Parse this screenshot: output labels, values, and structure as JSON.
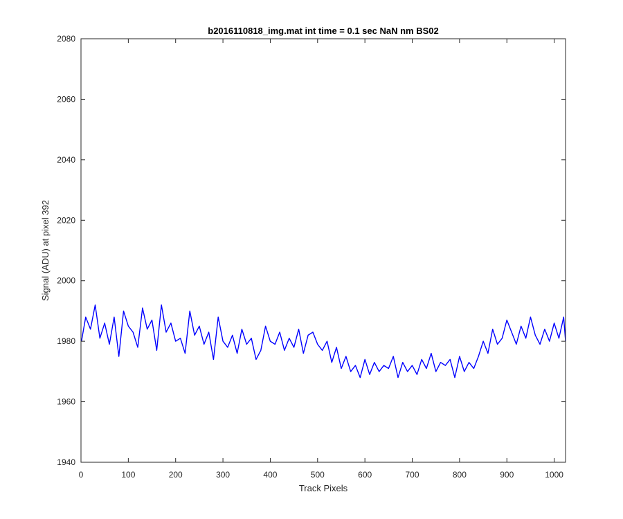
{
  "chart_data": {
    "type": "line",
    "title": "b2016110818_img.mat int time = 0.1 sec  NaN nm BS02",
    "xlabel": "Track Pixels",
    "ylabel": "Signal (ADU) at pixel 392",
    "xlim": [
      0,
      1024
    ],
    "ylim": [
      1940,
      2080
    ],
    "xticks": [
      0,
      100,
      200,
      300,
      400,
      500,
      600,
      700,
      800,
      900,
      1000
    ],
    "yticks": [
      1940,
      1960,
      1980,
      2000,
      2020,
      2040,
      2060,
      2080
    ],
    "grid": false,
    "line_color": "#0000ff",
    "series": [
      {
        "x": [
          1,
          10,
          20,
          30,
          40,
          50,
          60,
          70,
          80,
          90,
          100,
          110,
          120,
          130,
          140,
          150,
          160,
          170,
          180,
          190,
          200,
          210,
          220,
          230,
          240,
          250,
          260,
          270,
          280,
          290,
          300,
          310,
          320,
          330,
          340,
          350,
          360,
          370,
          380,
          390,
          400,
          410,
          420,
          430,
          440,
          450,
          460,
          470,
          480,
          490,
          500,
          510,
          520,
          530,
          540,
          550,
          560,
          570,
          580,
          590,
          600,
          610,
          620,
          630,
          640,
          650,
          660,
          670,
          680,
          690,
          700,
          710,
          720,
          730,
          740,
          750,
          760,
          770,
          780,
          790,
          800,
          810,
          820,
          830,
          840,
          850,
          860,
          870,
          880,
          890,
          900,
          910,
          920,
          930,
          940,
          950,
          960,
          970,
          980,
          990,
          1000,
          1010,
          1020,
          1024
        ],
        "values": [
          1980,
          1988,
          1984,
          1992,
          1981,
          1986,
          1979,
          1988,
          1975,
          1990,
          1985,
          1983,
          1978,
          1991,
          1984,
          1987,
          1977,
          1992,
          1983,
          1986,
          1980,
          1981,
          1976,
          1990,
          1982,
          1985,
          1979,
          1983,
          1974,
          1988,
          1980,
          1978,
          1982,
          1976,
          1984,
          1979,
          1981,
          1974,
          1977,
          1985,
          1980,
          1979,
          1983,
          1977,
          1981,
          1978,
          1984,
          1976,
          1982,
          1983,
          1979,
          1977,
          1980,
          1973,
          1978,
          1971,
          1975,
          1970,
          1972,
          1968,
          1974,
          1969,
          1973,
          1970,
          1972,
          1971,
          1975,
          1968,
          1973,
          1970,
          1972,
          1969,
          1974,
          1971,
          1976,
          1970,
          1973,
          1972,
          1974,
          1968,
          1975,
          1970,
          1973,
          1971,
          1975,
          1980,
          1976,
          1984,
          1979,
          1981,
          1987,
          1983,
          1979,
          1985,
          1981,
          1988,
          1982,
          1979,
          1984,
          1980,
          1986,
          1981,
          1988,
          1980
        ]
      }
    ]
  }
}
